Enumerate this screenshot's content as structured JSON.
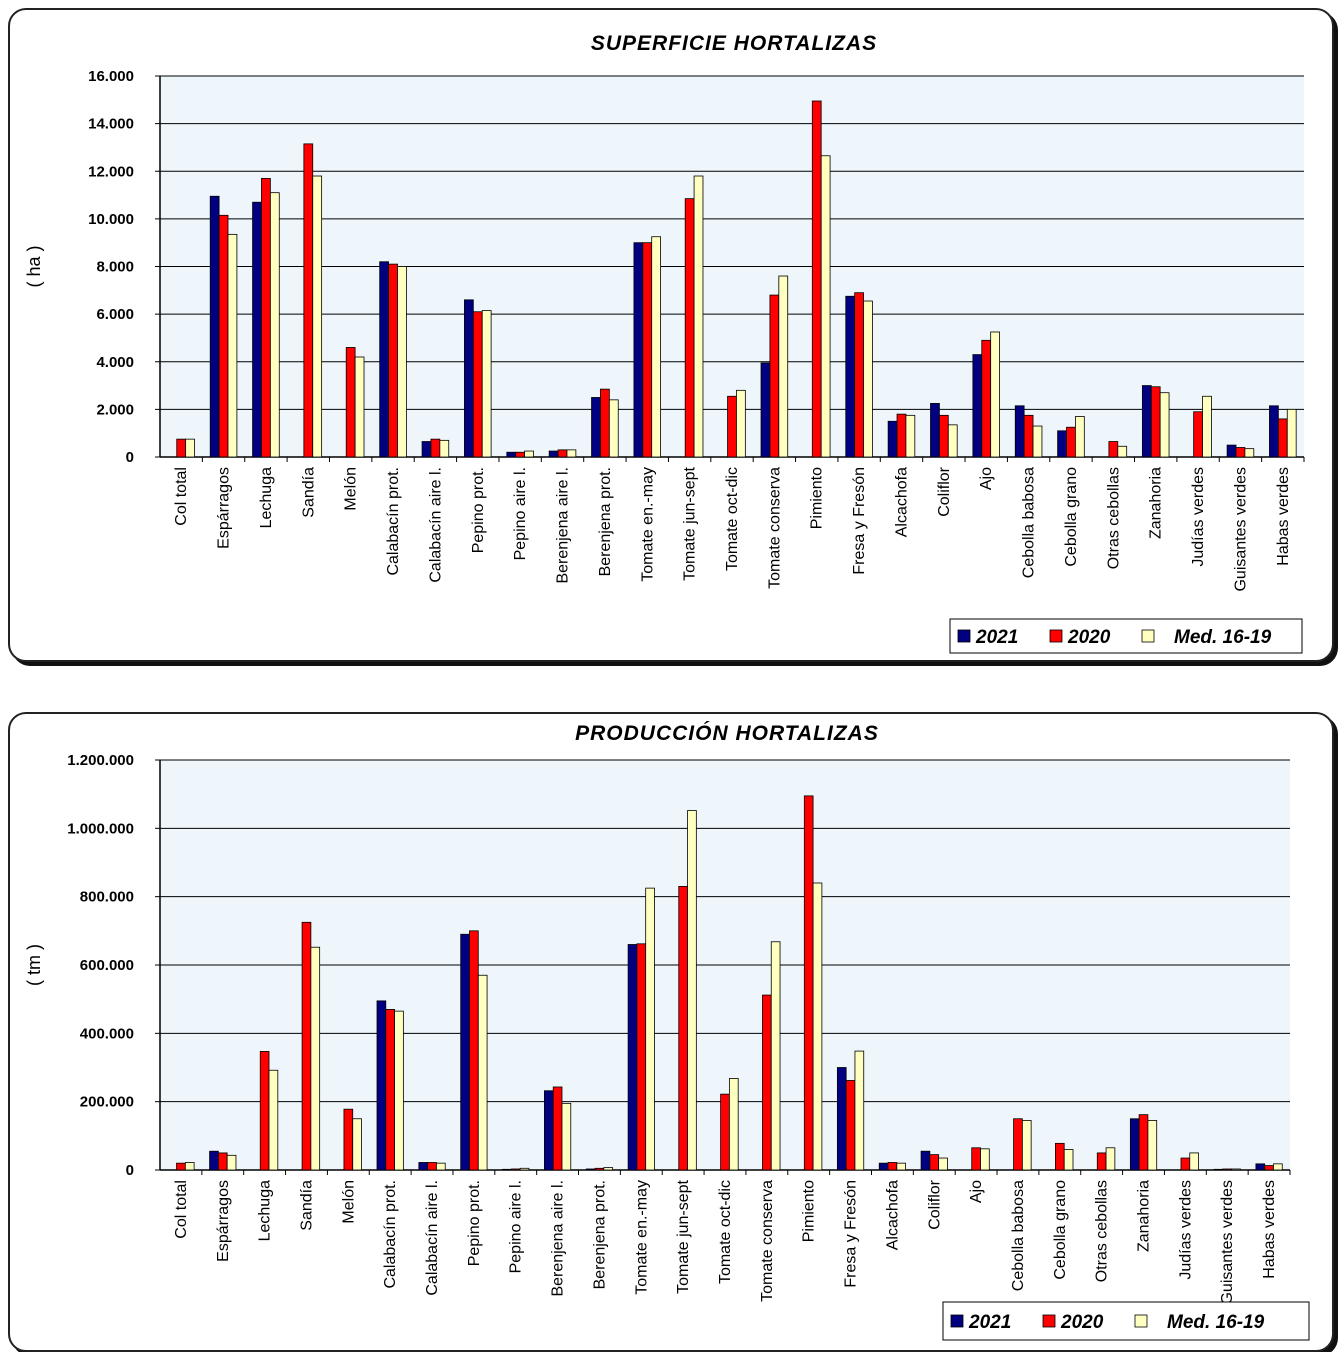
{
  "colors": {
    "2021": "#000080",
    "2020": "#ff0000",
    "med": "#ffffc0",
    "plot_bg": "#eef6fb",
    "grid": "#000000"
  },
  "chart_data": [
    {
      "type": "bar",
      "title": "SUPERFICIE HORTALIZAS",
      "ylabel": "( ha )",
      "xlabel": "",
      "ylim": [
        0,
        16000
      ],
      "yticks": [
        0,
        2000,
        4000,
        6000,
        8000,
        10000,
        12000,
        14000,
        16000
      ],
      "ytick_labels": [
        "0",
        "2.000",
        "4.000",
        "6.000",
        "8.000",
        "10.000",
        "12.000",
        "14.000",
        "16.000"
      ],
      "grid": true,
      "legend_position": "bottom-right",
      "categories": [
        "Col total",
        "Espárragos",
        "Lechuga",
        "Sandía",
        "Melón",
        "Calabacín prot.",
        "Calabacín aire l.",
        "Pepino prot.",
        "Pepino aire l.",
        "Berenjena aire l.",
        "Berenjena prot.",
        "Tomate en.-may",
        "Tomate jun-sept",
        "Tomate oct-dic",
        "Tomate conserva",
        "Pimiento",
        "Fresa y Fresón",
        "Alcachofa",
        "Coliflor",
        "Ajo",
        "Cebolla babosa",
        "Cebolla grano",
        "Otras cebollas",
        "Zanahoria",
        "Judías verdes",
        "Guisantes verdes",
        "Habas verdes"
      ],
      "series": [
        {
          "name": "2021",
          "values": [
            0,
            10950,
            10700,
            0,
            0,
            8200,
            650,
            6600,
            200,
            250,
            2500,
            9000,
            0,
            0,
            3950,
            0,
            6750,
            1500,
            2250,
            4300,
            2150,
            1100,
            0,
            3000,
            0,
            500,
            2150
          ]
        },
        {
          "name": "2020",
          "values": [
            750,
            10150,
            11700,
            13150,
            4600,
            8100,
            750,
            6100,
            200,
            300,
            2850,
            9000,
            10850,
            2550,
            6800,
            14950,
            6900,
            1800,
            1750,
            4900,
            1750,
            1250,
            650,
            2950,
            1900,
            400,
            1600
          ]
        },
        {
          "name": "Med. 16-19",
          "values": [
            750,
            9350,
            11100,
            11800,
            4200,
            8000,
            700,
            6150,
            250,
            300,
            2400,
            9250,
            11800,
            2800,
            7600,
            12650,
            6550,
            1750,
            1350,
            5250,
            1300,
            1700,
            450,
            2700,
            2550,
            350,
            2000
          ]
        }
      ]
    },
    {
      "type": "bar",
      "title": "PRODUCCIÓN HORTALIZAS",
      "ylabel": "( tm )",
      "xlabel": "",
      "ylim": [
        0,
        1200000
      ],
      "yticks": [
        0,
        200000,
        400000,
        600000,
        800000,
        1000000,
        1200000
      ],
      "ytick_labels": [
        "0",
        "200.000",
        "400.000",
        "600.000",
        "800.000",
        "1.000.000",
        "1.200.000"
      ],
      "grid": true,
      "legend_position": "bottom-right",
      "categories": [
        "Col total",
        "Espárragos",
        "Lechuga",
        "Sandía",
        "Melón",
        "Calabacín prot.",
        "Calabacín aire l.",
        "Pepino prot.",
        "Pepino aire l.",
        "Berenjena aire l.",
        "Berenjena prot.",
        "Tomate en.-may",
        "Tomate jun-sept",
        "Tomate oct-dic",
        "Tomate conserva",
        "Pimiento",
        "Fresa y Fresón",
        "Alcachofa",
        "Coliflor",
        "Ajo",
        "Cebolla babosa",
        "Cebolla grano",
        "Otras cebollas",
        "Zanahoria",
        "Judías verdes",
        "Guisantes verdes",
        "Habas verdes"
      ],
      "series": [
        {
          "name": "2021",
          "values": [
            0,
            55000,
            0,
            0,
            0,
            495000,
            22000,
            690000,
            2000,
            232000,
            3000,
            660000,
            0,
            0,
            0,
            0,
            300000,
            20000,
            55000,
            0,
            0,
            0,
            0,
            150000,
            0,
            2000,
            18000
          ]
        },
        {
          "name": "2020",
          "values": [
            20000,
            50000,
            347000,
            725000,
            178000,
            470000,
            22000,
            700000,
            3000,
            243000,
            5000,
            662000,
            830000,
            222000,
            512000,
            1095000,
            262000,
            22000,
            45000,
            65000,
            150000,
            78000,
            50000,
            162000,
            35000,
            3000,
            13000
          ]
        },
        {
          "name": "Med. 16-19",
          "values": [
            22000,
            43000,
            292000,
            652000,
            150000,
            465000,
            20000,
            570000,
            5000,
            195000,
            7000,
            825000,
            1052000,
            268000,
            668000,
            840000,
            348000,
            20000,
            35000,
            62000,
            145000,
            60000,
            65000,
            145000,
            50000,
            3000,
            18000
          ]
        }
      ]
    }
  ]
}
